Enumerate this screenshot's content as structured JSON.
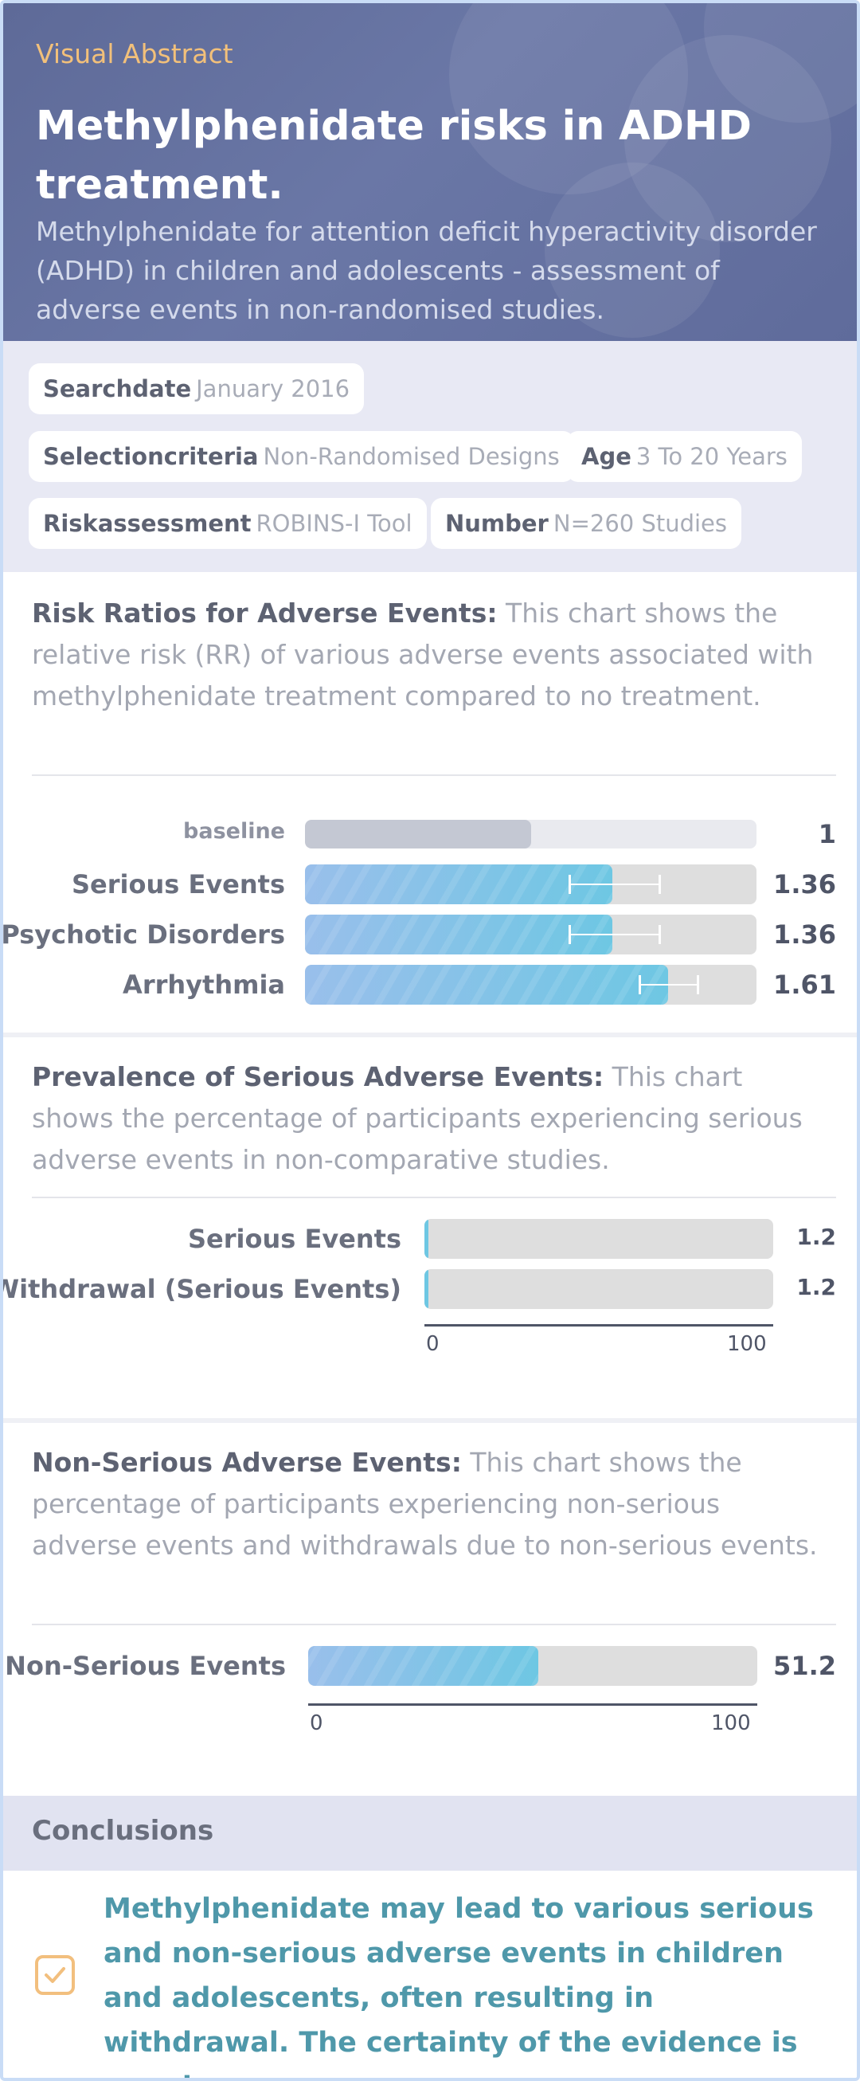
{
  "header": {
    "kicker": "Visual Abstract",
    "title": "Methylphenidate risks in ADHD treatment.",
    "subtitle": "Methylphenidate for attention deficit hyperactivity disorder (ADHD) in children and adolescents - assessment of adverse events in non-randomised studies."
  },
  "tags": [
    {
      "key": "Searchdate",
      "value": "January 2016"
    },
    {
      "key": "Selectioncriteria",
      "value": "Non-Randomised Designs"
    },
    {
      "key": "Age",
      "value": "3 To 20 Years"
    },
    {
      "key": "Riskassessment",
      "value": "ROBINS-I Tool"
    },
    {
      "key": "Number",
      "value": "N=260 Studies"
    }
  ],
  "sections": {
    "risk": {
      "heading": "Risk Ratios for Adverse Events:",
      "desc": " This chart shows the relative risk (RR) of various adverse events associated with methylphenidate treatment compared to no treatment."
    },
    "prevalence": {
      "heading": "Prevalence of Serious Adverse Events:",
      "desc": " This chart shows the percentage of participants experiencing serious adverse events in non-comparative studies."
    },
    "nonserious": {
      "heading": "Non-Serious Adverse Events:",
      "desc": " This chart shows the percentage of participants experiencing non-serious adverse events and withdrawals due to non-serious events."
    }
  },
  "chart_data": [
    {
      "type": "bar",
      "orientation": "horizontal",
      "categories": [
        "baseline",
        "Serious Events",
        "Psychotic Disorders",
        "Arrhythmia"
      ],
      "values": [
        1,
        1.36,
        1.36,
        1.61
      ],
      "value_labels": [
        "1",
        "1.36",
        "1.36",
        "1.61"
      ],
      "error_bars": [
        null,
        [
          1.17,
          1.57
        ],
        [
          1.17,
          1.57
        ],
        [
          1.48,
          1.74
        ]
      ],
      "xlim": [
        0,
        2
      ]
    },
    {
      "type": "bar",
      "orientation": "horizontal",
      "categories": [
        "Serious Events",
        "Withdrawal (Serious Events)"
      ],
      "values": [
        1.2,
        1.2
      ],
      "value_labels": [
        "1.2",
        "1.2"
      ],
      "xlim": [
        0,
        100
      ],
      "ticks": [
        "0",
        "100"
      ]
    },
    {
      "type": "bar",
      "orientation": "horizontal",
      "categories": [
        "Non-Serious Events"
      ],
      "values": [
        51.2
      ],
      "value_labels": [
        "51.2"
      ],
      "xlim": [
        0,
        100
      ],
      "ticks": [
        "0",
        "100"
      ]
    }
  ],
  "conclusions": {
    "heading": "Conclusions",
    "text": "Methylphenidate may lead to various serious and non-serious adverse events in children and adolescents, often resulting in withdrawal. The certainty of the evidence is very low.",
    "icon": "checkbox-icon",
    "icon_color": "#f2bf7e",
    "text_color": "#4f98aa"
  },
  "colors": {
    "header_bg": "#6a77a6",
    "kicker": "#f2c07a",
    "bar_start": "#99bfeb",
    "bar_end": "#6ec7e3",
    "track": "#dedede"
  }
}
